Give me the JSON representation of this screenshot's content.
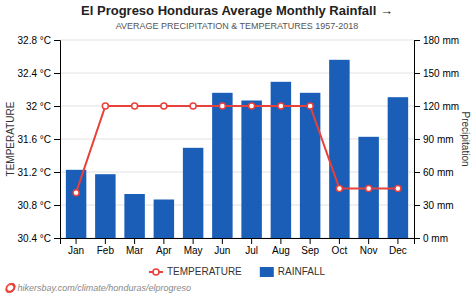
{
  "chart_data": {
    "type": "bar",
    "title": "El Progreso Honduras Average Monthly Rainfall →",
    "subtitle": "AVERAGE PRECIPITATION & TEMPERATURES 1957-2018",
    "annotations": [
      "⭕ hikersbay.com/climate/honduras/elprogreso"
    ],
    "ylabel": "TEMPERATURE",
    "y2label": "Precipitation",
    "categories": [
      "Jan",
      "Feb",
      "Mar",
      "Apr",
      "May",
      "Jun",
      "Jul",
      "Aug",
      "Sep",
      "Oct",
      "Nov",
      "Dec"
    ],
    "series": [
      {
        "name": "TEMPERATURE",
        "type": "line",
        "marker": "circle",
        "color": "#e8403a",
        "values": [
          30.95,
          32.0,
          32.0,
          32.0,
          32.0,
          32.0,
          32.0,
          32.0,
          32.0,
          31.0,
          31.0,
          31.0
        ]
      },
      {
        "name": "RAINFALL",
        "type": "bar",
        "axis": "y2",
        "color": "#1a5eb8",
        "values": [
          62,
          58,
          40,
          35,
          82,
          132,
          125,
          142,
          132,
          162,
          92,
          128
        ]
      }
    ],
    "ylim": [
      30.4,
      32.8
    ],
    "yticks": [
      {
        "value": 30.4,
        "label": "30.4 °C"
      },
      {
        "value": 30.8,
        "label": "30.8 °C"
      },
      {
        "value": 31.2,
        "label": "31.2 °C"
      },
      {
        "value": 31.6,
        "label": "31.6 °C"
      },
      {
        "value": 32.0,
        "label": "32 °C"
      },
      {
        "value": 32.4,
        "label": "32.4 °C"
      },
      {
        "value": 32.8,
        "label": "32.8 °C"
      }
    ],
    "y2lim": [
      0,
      180
    ],
    "y2ticks": [
      {
        "value": 0,
        "label": "0 mm"
      },
      {
        "value": 30,
        "label": "30 mm"
      },
      {
        "value": 60,
        "label": "60 mm"
      },
      {
        "value": 90,
        "label": "90 mm"
      },
      {
        "value": 120,
        "label": "120 mm"
      },
      {
        "value": 150,
        "label": "150 mm"
      },
      {
        "value": 180,
        "label": "180 mm"
      }
    ],
    "grid": true,
    "legend": "bottom"
  }
}
